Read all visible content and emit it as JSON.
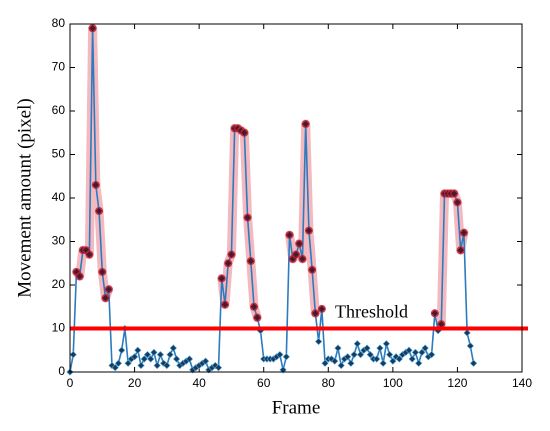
{
  "chart_data": {
    "type": "line",
    "xlabel": "Frame",
    "ylabel": "Movement amount (pixel)",
    "x": [
      0,
      1,
      2,
      3,
      4,
      5,
      6,
      7,
      8,
      9,
      10,
      11,
      12,
      13,
      14,
      15,
      16,
      17,
      18,
      19,
      20,
      21,
      22,
      23,
      24,
      25,
      26,
      27,
      28,
      29,
      30,
      31,
      32,
      33,
      34,
      35,
      36,
      37,
      38,
      39,
      40,
      41,
      42,
      43,
      44,
      45,
      46,
      47,
      48,
      49,
      50,
      51,
      52,
      53,
      54,
      55,
      56,
      57,
      58,
      59,
      60,
      61,
      62,
      63,
      64,
      65,
      66,
      67,
      68,
      69,
      70,
      71,
      72,
      73,
      74,
      75,
      76,
      77,
      78,
      79,
      80,
      81,
      82,
      83,
      84,
      85,
      86,
      87,
      88,
      89,
      90,
      91,
      92,
      93,
      94,
      95,
      96,
      97,
      98,
      99,
      100,
      101,
      102,
      103,
      104,
      105,
      106,
      107,
      108,
      109,
      110,
      111,
      112,
      113,
      114,
      115,
      116,
      117,
      118,
      119,
      120,
      121,
      122,
      123,
      124,
      125
    ],
    "series": [
      {
        "color": "#2b7bbf",
        "values": [
          0,
          4,
          23,
          22,
          28,
          28,
          27,
          79,
          43,
          37,
          23,
          17,
          19,
          1.5,
          1,
          2,
          5,
          10,
          2,
          3,
          3.5,
          5,
          1.5,
          3,
          4,
          3,
          4.5,
          1.5,
          4,
          2,
          1.5,
          4,
          5.5,
          3,
          1.5,
          2,
          2.5,
          3,
          0.5,
          1,
          1.5,
          2,
          2.5,
          0.5,
          1,
          1.5,
          1,
          21.5,
          15.5,
          25,
          27,
          56,
          56,
          55.5,
          55,
          35.5,
          25.5,
          15,
          12.5,
          9.5,
          3,
          3,
          3,
          3,
          3.5,
          4,
          0.5,
          3.5,
          31.5,
          26,
          27,
          29.5,
          26,
          57,
          32.5,
          23.5,
          13.5,
          7,
          14.5,
          2,
          3,
          3,
          2.5,
          5.5,
          1.5,
          3,
          3.5,
          2,
          4,
          6.5,
          4,
          5,
          5.5,
          4,
          3,
          3,
          5.5,
          2,
          6.5,
          4,
          2.5,
          3.5,
          3,
          4,
          4.5,
          5,
          3,
          4.5,
          2,
          4.5,
          5.5,
          3.5,
          4,
          13.5,
          9.5,
          11,
          41,
          41,
          41,
          41,
          39,
          28,
          32,
          9,
          6,
          2
        ]
      }
    ],
    "marker_color": "#1c3a5e",
    "highlight_color": "#c0233a",
    "band_color": "#f4b8bf",
    "threshold": {
      "value": 10,
      "label": "Threshold",
      "color": "#ff0000"
    },
    "xlim": [
      0,
      140
    ],
    "xticks": [
      0,
      20,
      40,
      60,
      80,
      100,
      120,
      140
    ],
    "ylim": [
      0,
      80
    ],
    "yticks": [
      0,
      10,
      20,
      30,
      40,
      50,
      60,
      70,
      80
    ]
  }
}
